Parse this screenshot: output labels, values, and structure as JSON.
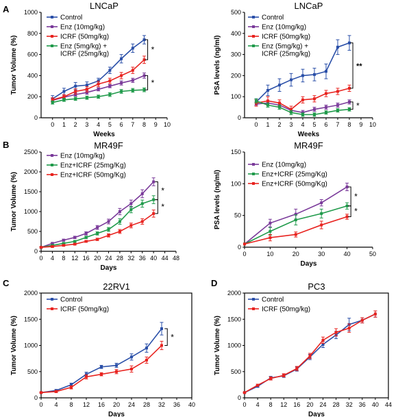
{
  "panel_labels": [
    "A",
    "B",
    "C",
    "D"
  ],
  "colors": {
    "blue": "#2a4fa8",
    "purple": "#7a3a9a",
    "red": "#e8231f",
    "green": "#1f9a4a",
    "axis": "#000000"
  },
  "chart_data": [
    {
      "id": "A1",
      "type": "line",
      "title": "LNCaP",
      "xlabel": "Weeks",
      "ylabel": "Tumor Volume (%)",
      "xlim": [
        -1,
        10
      ],
      "ylim": [
        0,
        1000
      ],
      "xticks": [
        0,
        1,
        2,
        3,
        4,
        5,
        6,
        7,
        8,
        9,
        10
      ],
      "yticks": [
        0,
        200,
        400,
        600,
        800,
        1000
      ],
      "legend": "top-left",
      "series": [
        {
          "name": "Control",
          "color": "blue",
          "x": [
            0,
            1,
            2,
            3,
            4,
            5,
            6,
            7,
            8
          ],
          "values": [
            180,
            250,
            300,
            310,
            350,
            450,
            560,
            660,
            740
          ],
          "err": [
            30,
            30,
            35,
            30,
            25,
            30,
            40,
            40,
            40
          ]
        },
        {
          "name": "Enz (10mg/kg)",
          "color": "purple",
          "x": [
            0,
            1,
            2,
            3,
            4,
            5,
            6,
            7,
            8
          ],
          "values": [
            165,
            195,
            220,
            240,
            270,
            300,
            330,
            355,
            400
          ],
          "err": [
            15,
            15,
            15,
            18,
            15,
            15,
            20,
            20,
            25
          ]
        },
        {
          "name": "ICRF (50mg/kg)",
          "color": "red",
          "x": [
            0,
            1,
            2,
            3,
            4,
            5,
            6,
            7,
            8
          ],
          "values": [
            170,
            200,
            250,
            270,
            320,
            350,
            400,
            450,
            550
          ],
          "err": [
            20,
            20,
            25,
            25,
            25,
            25,
            30,
            30,
            35
          ]
        },
        {
          "name": "Enz (5mg/kg) +\nICRF (25mg/kg)",
          "color": "green",
          "x": [
            0,
            1,
            2,
            3,
            4,
            5,
            6,
            7,
            8
          ],
          "values": [
            145,
            170,
            180,
            190,
            200,
            220,
            250,
            260,
            265
          ],
          "err": [
            15,
            15,
            15,
            15,
            15,
            18,
            18,
            18,
            18
          ]
        }
      ],
      "annotations": [
        "*",
        "*"
      ]
    },
    {
      "id": "A2",
      "type": "line",
      "title": "LNCaP",
      "xlabel": "Weeks",
      "ylabel": "PSA levels (ng/ml)",
      "xlim": [
        -1,
        10
      ],
      "ylim": [
        0,
        500
      ],
      "xticks": [
        0,
        1,
        2,
        3,
        4,
        5,
        6,
        7,
        8,
        9,
        10
      ],
      "yticks": [
        0,
        100,
        200,
        300,
        400,
        500
      ],
      "legend": "top-left",
      "series": [
        {
          "name": "Control",
          "color": "blue",
          "x": [
            0,
            1,
            2,
            3,
            4,
            5,
            6,
            7,
            8
          ],
          "values": [
            75,
            130,
            155,
            180,
            200,
            205,
            220,
            335,
            355
          ],
          "err": [
            15,
            25,
            30,
            30,
            30,
            30,
            35,
            35,
            35
          ]
        },
        {
          "name": "Enz (10mg/kg)",
          "color": "purple",
          "x": [
            0,
            1,
            2,
            3,
            4,
            5,
            6,
            7,
            8
          ],
          "values": [
            65,
            70,
            60,
            35,
            25,
            40,
            50,
            60,
            75
          ],
          "err": [
            10,
            10,
            10,
            10,
            10,
            10,
            10,
            10,
            10
          ]
        },
        {
          "name": "ICRF (50mg/kg)",
          "color": "red",
          "x": [
            0,
            1,
            2,
            3,
            4,
            5,
            6,
            7,
            8
          ],
          "values": [
            70,
            80,
            70,
            40,
            85,
            90,
            115,
            125,
            140
          ],
          "err": [
            15,
            20,
            15,
            15,
            15,
            15,
            15,
            15,
            15
          ]
        },
        {
          "name": "Enz (5mg/kg) +\nICRF (25mg/kg)",
          "color": "green",
          "x": [
            0,
            1,
            2,
            3,
            4,
            5,
            6,
            7,
            8
          ],
          "values": [
            80,
            60,
            50,
            25,
            15,
            15,
            25,
            35,
            40
          ],
          "err": [
            10,
            10,
            10,
            10,
            8,
            8,
            8,
            8,
            8
          ]
        }
      ],
      "annotations": [
        "**",
        "*"
      ]
    },
    {
      "id": "B1",
      "type": "line",
      "title": "MR49F",
      "xlabel": "Days",
      "ylabel": "Tumor Volume (%)",
      "xlim": [
        0,
        48
      ],
      "ylim": [
        0,
        2500
      ],
      "xticks": [
        0,
        4,
        8,
        12,
        16,
        20,
        24,
        28,
        32,
        36,
        40,
        44,
        48
      ],
      "yticks": [
        0,
        500,
        1000,
        1500,
        2000,
        2500
      ],
      "legend": "top-left",
      "series": [
        {
          "name": "Enz (10mg/kg)",
          "color": "purple",
          "x": [
            0,
            4,
            8,
            12,
            16,
            20,
            24,
            28,
            32,
            36,
            40
          ],
          "values": [
            100,
            200,
            280,
            350,
            450,
            600,
            750,
            1000,
            1200,
            1450,
            1750
          ],
          "err": [
            15,
            20,
            25,
            30,
            40,
            50,
            60,
            80,
            90,
            100,
            100
          ]
        },
        {
          "name": "Enz+ICRF (25mg/Kg)",
          "color": "green",
          "x": [
            0,
            4,
            8,
            12,
            16,
            20,
            24,
            28,
            32,
            36,
            40
          ],
          "values": [
            100,
            150,
            200,
            250,
            350,
            450,
            550,
            750,
            1050,
            1200,
            1300
          ],
          "err": [
            15,
            20,
            20,
            25,
            30,
            40,
            50,
            70,
            80,
            90,
            100
          ]
        },
        {
          "name": "Enz+ICRF (50mg/Kg)",
          "color": "red",
          "x": [
            0,
            4,
            8,
            12,
            16,
            20,
            24,
            28,
            32,
            36,
            40
          ],
          "values": [
            100,
            120,
            150,
            180,
            250,
            300,
            400,
            500,
            650,
            750,
            950
          ],
          "err": [
            15,
            20,
            20,
            20,
            25,
            30,
            40,
            50,
            60,
            70,
            90
          ]
        }
      ],
      "annotations": [
        "*",
        "*"
      ]
    },
    {
      "id": "B2",
      "type": "line",
      "title": "MR49F",
      "xlabel": "Days",
      "ylabel": "PSA levels (ng/ml)",
      "xlim": [
        0,
        50
      ],
      "ylim": [
        0,
        150
      ],
      "xticks": [
        0,
        10,
        20,
        30,
        40,
        50
      ],
      "yticks": [
        0,
        50,
        100,
        150
      ],
      "legend": "top-left",
      "series": [
        {
          "name": "Enz (10mg/kg)",
          "color": "purple",
          "x": [
            0,
            10,
            20,
            30,
            40
          ],
          "values": [
            5,
            38,
            52,
            70,
            95
          ],
          "err": [
            0,
            6,
            8,
            5,
            6
          ]
        },
        {
          "name": "Enz+ICRF (25mg/Kg)",
          "color": "green",
          "x": [
            0,
            10,
            20,
            30,
            40
          ],
          "values": [
            5,
            25,
            43,
            53,
            65
          ],
          "err": [
            0,
            6,
            8,
            7,
            5
          ]
        },
        {
          "name": "Enz+ICRF (50mg/Kg)",
          "color": "red",
          "x": [
            0,
            10,
            20,
            30,
            40
          ],
          "values": [
            5,
            15,
            20,
            35,
            48
          ],
          "err": [
            0,
            5,
            4,
            6,
            4
          ]
        }
      ],
      "annotations": [
        "*",
        "*"
      ]
    },
    {
      "id": "C",
      "type": "line",
      "title": "22RV1",
      "xlabel": "Days",
      "ylabel": "Tumor Volume (%)",
      "xlim": [
        0,
        40
      ],
      "ylim": [
        0,
        2000
      ],
      "xticks": [
        0,
        4,
        8,
        12,
        16,
        20,
        24,
        28,
        32,
        36,
        40
      ],
      "yticks": [
        0,
        500,
        1000,
        1500,
        2000
      ],
      "legend": "top-left",
      "series": [
        {
          "name": "Control",
          "color": "blue",
          "x": [
            0,
            4,
            8,
            12,
            16,
            20,
            24,
            28,
            32
          ],
          "values": [
            100,
            140,
            250,
            450,
            590,
            620,
            780,
            950,
            1320
          ],
          "err": [
            10,
            20,
            30,
            40,
            30,
            40,
            60,
            80,
            120
          ]
        },
        {
          "name": "ICRF (50mg/kg)",
          "color": "red",
          "x": [
            0,
            4,
            8,
            12,
            16,
            20,
            24,
            28,
            32
          ],
          "values": [
            100,
            120,
            200,
            400,
            450,
            500,
            550,
            720,
            1000
          ],
          "err": [
            10,
            20,
            30,
            40,
            30,
            40,
            60,
            60,
            80
          ]
        }
      ],
      "annotations": [
        "*"
      ]
    },
    {
      "id": "D",
      "type": "line",
      "title": "PC3",
      "xlabel": "Days",
      "ylabel": "Tumor Volume (%)",
      "xlim": [
        0,
        44
      ],
      "ylim": [
        0,
        2000
      ],
      "xticks": [
        0,
        4,
        8,
        12,
        16,
        20,
        24,
        28,
        32,
        36,
        40,
        44
      ],
      "yticks": [
        0,
        500,
        1000,
        1500,
        2000
      ],
      "legend": "top-left",
      "series": [
        {
          "name": "Control",
          "color": "blue",
          "x": [
            0,
            4,
            8,
            12,
            16,
            20,
            24,
            28,
            32,
            36,
            40
          ],
          "values": [
            100,
            220,
            380,
            420,
            550,
            780,
            1020,
            1200,
            1400,
            1480,
            1600
          ],
          "err": [
            10,
            20,
            30,
            30,
            40,
            50,
            60,
            70,
            120,
            50,
            60
          ]
        },
        {
          "name": "ICRF (50mg/kg)",
          "color": "red",
          "x": [
            0,
            4,
            8,
            12,
            16,
            20,
            24,
            28,
            32,
            36,
            40
          ],
          "values": [
            100,
            240,
            370,
            430,
            560,
            800,
            1100,
            1250,
            1330,
            1480,
            1600
          ],
          "err": [
            10,
            20,
            30,
            30,
            40,
            50,
            60,
            70,
            80,
            50,
            60
          ]
        }
      ],
      "annotations": []
    }
  ]
}
